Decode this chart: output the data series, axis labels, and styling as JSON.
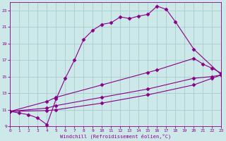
{
  "bg_color": "#cce8e8",
  "grid_color": "#aacccc",
  "line_color": "#880088",
  "marker": "D",
  "xlabel": "Windchill (Refroidissement éolien,°C)",
  "xlabel_color": "#880088",
  "tick_color": "#880088",
  "xmin": 0,
  "xmax": 23,
  "ymin": 9,
  "ymax": 24,
  "yticks": [
    9,
    11,
    13,
    15,
    17,
    19,
    21,
    23
  ],
  "xticks": [
    0,
    1,
    2,
    3,
    4,
    5,
    6,
    7,
    8,
    9,
    10,
    11,
    12,
    13,
    14,
    15,
    16,
    17,
    18,
    19,
    20,
    21,
    22,
    23
  ],
  "curve1_x": [
    0,
    1,
    2,
    3,
    4,
    5,
    6,
    7,
    8,
    9,
    10,
    11,
    12,
    13,
    14,
    15,
    16,
    17,
    18,
    20,
    23
  ],
  "curve1_y": [
    10.8,
    10.6,
    10.4,
    10.0,
    9.2,
    12.3,
    14.8,
    17.0,
    19.5,
    20.6,
    21.3,
    21.5,
    22.2,
    22.0,
    22.3,
    22.5,
    23.5,
    23.1,
    21.6,
    18.3,
    15.2
  ],
  "curve2_x": [
    0,
    4,
    5,
    10,
    15,
    16,
    20,
    21,
    22,
    23
  ],
  "curve2_y": [
    10.8,
    12.0,
    12.5,
    14.0,
    15.5,
    15.8,
    17.2,
    16.5,
    16.0,
    15.4
  ],
  "curve3_x": [
    0,
    4,
    5,
    10,
    15,
    20,
    22,
    23
  ],
  "curve3_y": [
    10.8,
    11.2,
    11.5,
    12.5,
    13.5,
    14.8,
    15.0,
    15.2
  ],
  "curve4_x": [
    0,
    4,
    5,
    10,
    15,
    20,
    22,
    23
  ],
  "curve4_y": [
    10.8,
    10.9,
    11.0,
    11.8,
    12.8,
    14.0,
    14.8,
    15.2
  ]
}
